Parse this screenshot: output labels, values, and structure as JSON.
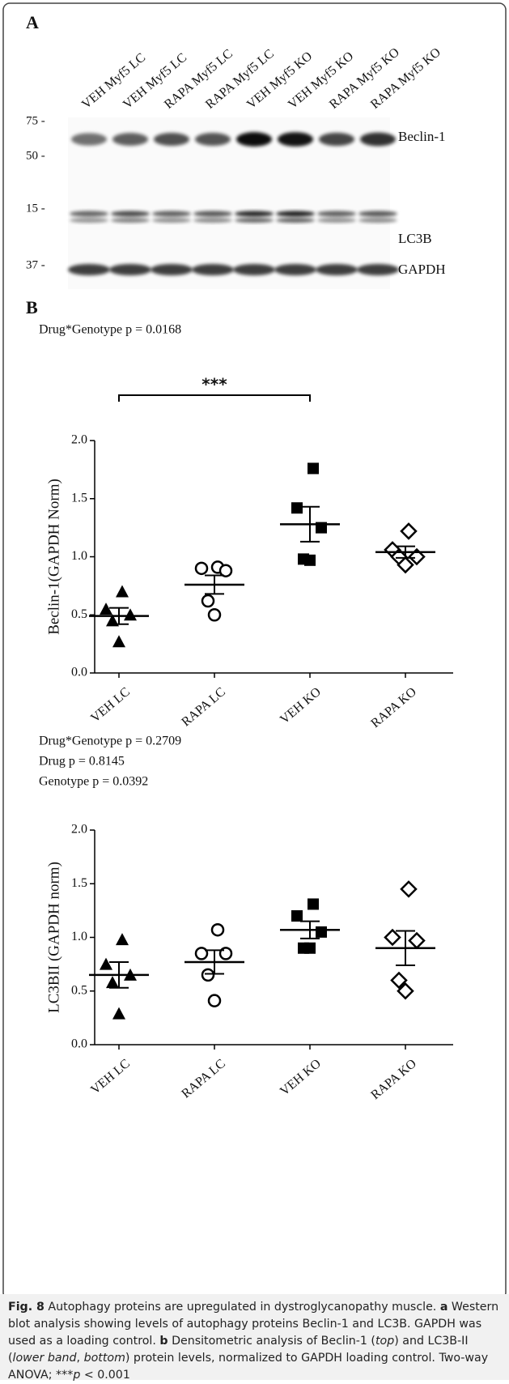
{
  "panel_a": {
    "label": "A",
    "lanes": [
      "VEH Myf5 LC",
      "VEH Myf5 LC",
      "RAPA Myf5 LC",
      "RAPA Myf5 LC",
      "VEH Myf5 KO",
      "VEH Myf5 KO",
      "RAPA Myf5 KO",
      "RAPA Myf5 KO"
    ],
    "size_markers": [
      "75 -",
      "50 -",
      "15 -",
      "37 -"
    ],
    "proteins": [
      "Beclin-1",
      "LC3B",
      "GAPDH"
    ]
  },
  "panel_b": {
    "label": "B",
    "significance": "***"
  },
  "chart_data": [
    {
      "type": "scatter",
      "annotations": [
        "Drug*Genotype p = 0.0168"
      ],
      "y_label": "Beclin-1(GAPDH Norm)",
      "categories": [
        "VEH LC",
        "RAPA LC",
        "VEH KO",
        "RAPA KO"
      ],
      "markers": [
        "filled-triangle",
        "open-circle",
        "filled-square",
        "open-diamond"
      ],
      "values": [
        [
          0.7,
          0.55,
          0.5,
          0.45,
          0.27
        ],
        [
          0.91,
          0.9,
          0.88,
          0.62,
          0.5
        ],
        [
          1.76,
          1.42,
          1.25,
          0.98,
          0.97
        ],
        [
          1.22,
          1.06,
          1.0,
          1.0,
          0.93
        ]
      ],
      "means": [
        0.49,
        0.76,
        1.28,
        1.04
      ],
      "sems": [
        0.07,
        0.08,
        0.15,
        0.05
      ],
      "ylim": [
        0,
        2
      ],
      "yticks": [
        {
          "value": 0,
          "label": "0.0"
        },
        {
          "value": 0.5,
          "label": "0.5"
        },
        {
          "value": 1,
          "label": "1.0"
        },
        {
          "value": 1.5,
          "label": "1.5"
        },
        {
          "value": 2,
          "label": "2.0"
        }
      ],
      "color": "#000000"
    },
    {
      "type": "scatter",
      "annotations": [
        "Drug*Genotype p = 0.2709",
        "Drug p = 0.8145",
        "Genotype p = 0.0392"
      ],
      "y_label": "LC3BII (GAPDH norm)",
      "categories": [
        "VEH LC",
        "RAPA LC",
        "VEH KO",
        "RAPA KO"
      ],
      "markers": [
        "filled-triangle",
        "open-circle",
        "filled-square",
        "open-diamond"
      ],
      "values": [
        [
          0.98,
          0.75,
          0.65,
          0.58,
          0.29
        ],
        [
          1.07,
          0.85,
          0.85,
          0.65,
          0.41
        ],
        [
          1.31,
          1.2,
          1.05,
          0.9,
          0.9
        ],
        [
          1.45,
          1.0,
          0.97,
          0.6,
          0.5
        ]
      ],
      "means": [
        0.65,
        0.77,
        1.07,
        0.9
      ],
      "sems": [
        0.12,
        0.11,
        0.08,
        0.16
      ],
      "ylim": [
        0,
        2
      ],
      "yticks": [
        {
          "value": 0,
          "label": "0.0"
        },
        {
          "value": 0.5,
          "label": "0.5"
        },
        {
          "value": 1,
          "label": "1.0"
        },
        {
          "value": 1.5,
          "label": "1.5"
        },
        {
          "value": 2,
          "label": "2.0"
        }
      ],
      "color": "#000000"
    }
  ],
  "caption": [
    {
      "text": "Fig. 8",
      "style": "bold"
    },
    {
      "text": " Autophagy proteins are upregulated in dystroglycanopathy muscle. ",
      "style": "plain"
    },
    {
      "text": "a",
      "style": "bold"
    },
    {
      "text": " Western blot analysis showing levels of autophagy proteins Beclin-1 and LC3B. GAPDH was used as a loading control. ",
      "style": "plain"
    },
    {
      "text": "b",
      "style": "bold"
    },
    {
      "text": " Densitometric analysis of Beclin-1 (",
      "style": "plain"
    },
    {
      "text": "top",
      "style": "italic"
    },
    {
      "text": ") and LC3B-II (",
      "style": "plain"
    },
    {
      "text": "lower band",
      "style": "italic"
    },
    {
      "text": ", ",
      "style": "plain"
    },
    {
      "text": "bottom",
      "style": "italic"
    },
    {
      "text": ") protein levels, normalized to GAPDH loading control. Two-way ANOVA; ***",
      "style": "plain"
    },
    {
      "text": "p",
      "style": "italic"
    },
    {
      "text": " < 0.001",
      "style": "plain"
    }
  ]
}
